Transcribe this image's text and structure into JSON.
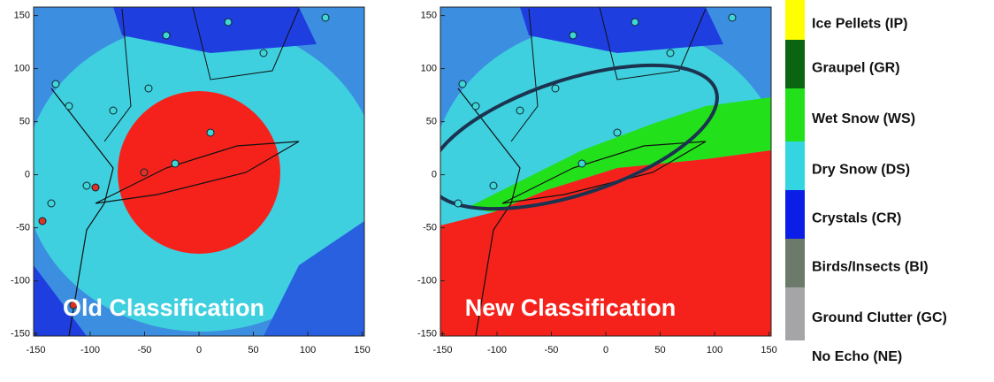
{
  "panels": [
    {
      "caption": "Old Classification",
      "xlim": [
        -152,
        152
      ],
      "ylim": [
        -152,
        158
      ],
      "xticks": [
        -150,
        -100,
        -50,
        0,
        50,
        100,
        150
      ],
      "yticks": [
        150,
        100,
        50,
        0,
        -50,
        -100,
        -150
      ]
    },
    {
      "caption": "New Classification",
      "xlim": [
        -152,
        152
      ],
      "ylim": [
        -152,
        158
      ],
      "xticks": [
        -150,
        -100,
        -50,
        0,
        50,
        100,
        150
      ],
      "yticks": [
        150,
        100,
        50,
        0,
        -50,
        -100,
        -150
      ]
    }
  ],
  "legend": {
    "entries": [
      {
        "label": "Ice Pellets (IP)",
        "color": "#ffff00"
      },
      {
        "label": "Graupel (GR)",
        "color": "#0a6410"
      },
      {
        "label": "Wet Snow (WS)",
        "color": "#22e01a"
      },
      {
        "label": "Dry Snow (DS)",
        "color": "#33d6e0"
      },
      {
        "label": "Crystals (CR)",
        "color": "#0a1ee8"
      },
      {
        "label": "Birds/Insects (BI)",
        "color": "#6b7a6a"
      },
      {
        "label": "Ground Clutter (GC)",
        "color": "#a5a5a8"
      },
      {
        "label": "No Echo (NE)",
        "color": "#ffffff"
      }
    ]
  }
}
